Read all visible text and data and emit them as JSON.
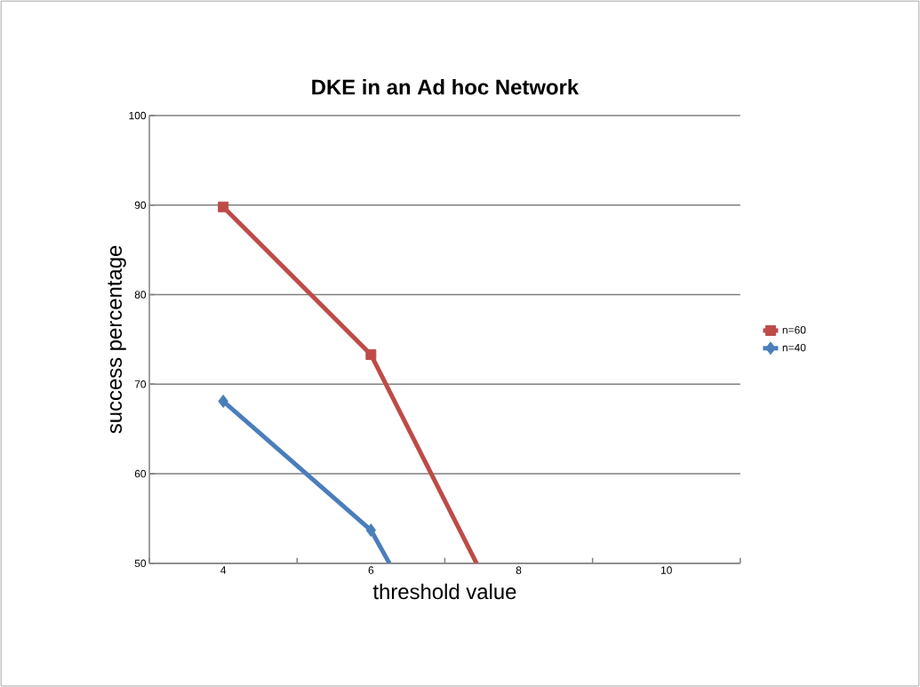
{
  "chart_data": {
    "type": "line",
    "title": "DKE in an Ad hoc Network",
    "xlabel": "threshold value",
    "ylabel": "success percentage",
    "xlim": [
      3,
      11
    ],
    "xticks": [
      {
        "value": 3,
        "label": null
      },
      4,
      {
        "value": 5,
        "label": null
      },
      6,
      {
        "value": 7,
        "label": null
      },
      8,
      {
        "value": 9,
        "label": null
      },
      10,
      {
        "value": 11,
        "label": null
      }
    ],
    "ylim": [
      50,
      100
    ],
    "yticks": [
      50,
      60,
      70,
      80,
      90,
      100
    ],
    "grid": "y",
    "legend": "right",
    "line_style": "solid",
    "series": [
      {
        "name": "n=60",
        "color": "#be4b48",
        "marker": "square",
        "x": [
          4,
          6,
          7.43
        ],
        "values": [
          89.8,
          73.3,
          50
        ]
      },
      {
        "name": "n=40",
        "color": "#4a7ebb",
        "marker": "diamond",
        "x": [
          4,
          6,
          6.25
        ],
        "values": [
          68.1,
          53.7,
          50
        ]
      }
    ]
  }
}
